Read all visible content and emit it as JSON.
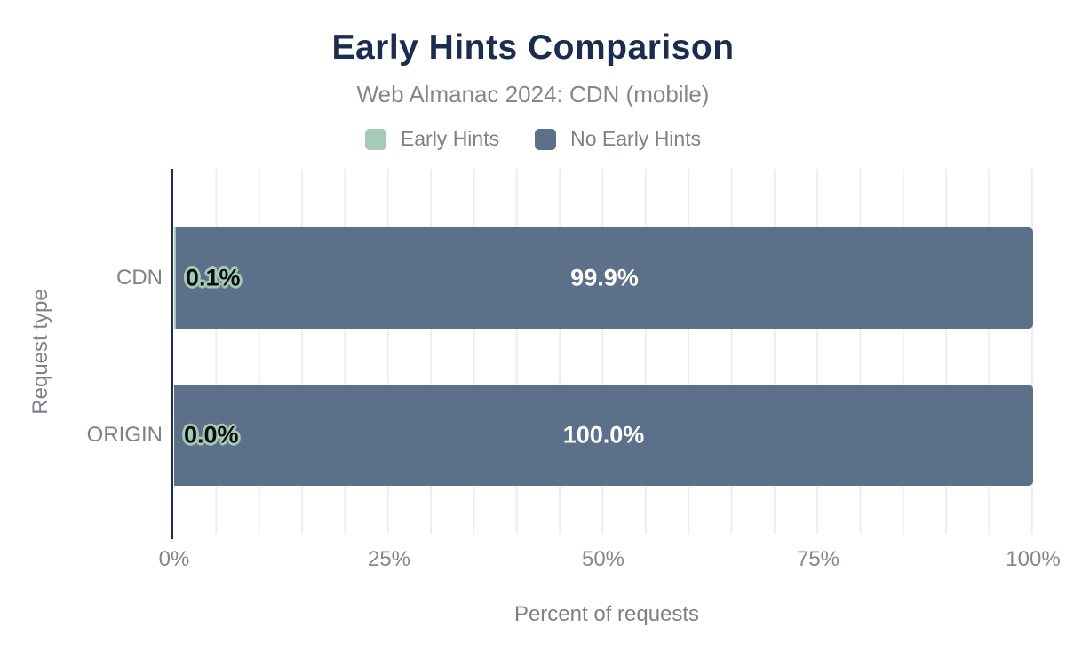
{
  "chart_data": {
    "type": "bar",
    "orientation": "horizontal",
    "stacked": true,
    "title": "Early Hints Comparison",
    "subtitle": "Web Almanac 2024: CDN (mobile)",
    "categories": [
      "CDN",
      "ORIGIN"
    ],
    "series": [
      {
        "name": "Early Hints",
        "color": "#a5cab6",
        "values": [
          0.1,
          0.0
        ]
      },
      {
        "name": "No Early Hints",
        "color": "#5d7089",
        "values": [
          99.9,
          100.0
        ]
      }
    ],
    "bar_labels": {
      "cdn_early": "0.1%",
      "cdn_no_early": "99.9%",
      "origin_early": "0.0%",
      "origin_no_early": "100.0%"
    },
    "xlabel": "Percent of requests",
    "ylabel": "Request type",
    "xlim": [
      0,
      100
    ],
    "x_ticks": [
      "0%",
      "25%",
      "50%",
      "75%",
      "100%"
    ],
    "grid": {
      "minor_step_percent": 5,
      "color": "#ededed",
      "orientation": "vertical"
    },
    "legend_position": "top"
  },
  "colors": {
    "title": "#1b2d4f",
    "subtitle": "#83888f",
    "axis_line": "#1c2c4e",
    "tick_label": "#83888f",
    "early_hints": "#a5cab6",
    "no_early_hints": "#5d7089",
    "bar_label_white": "#ffffff",
    "bar_label_outlined_fill": "#0c0e10",
    "background": "#ffffff"
  }
}
